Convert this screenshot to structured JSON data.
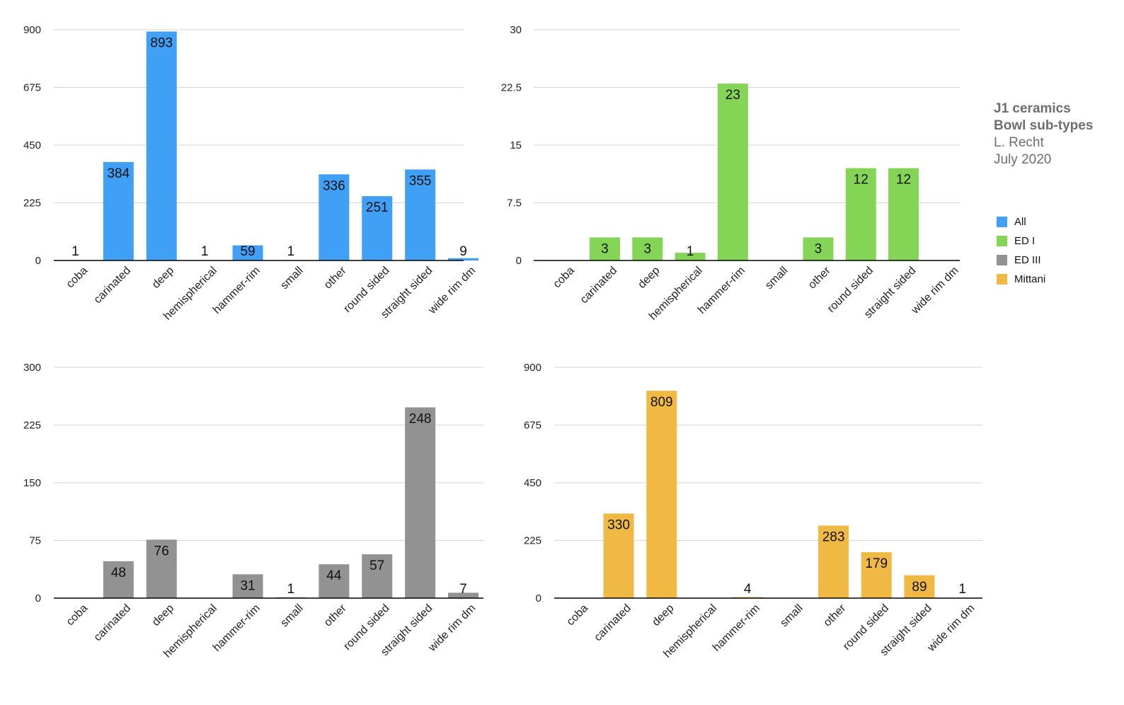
{
  "title": {
    "line1": "J1 ceramics",
    "line2": "Bowl sub-types",
    "line3": "L. Recht",
    "line4": "July 2020"
  },
  "legend": [
    {
      "label": "All",
      "color": "#3fa0f5"
    },
    {
      "label": "ED I",
      "color": "#84d556"
    },
    {
      "label": "ED III",
      "color": "#929292"
    },
    {
      "label": "Mittani",
      "color": "#f0b944"
    }
  ],
  "chart_data": [
    {
      "type": "bar",
      "series_name": "All",
      "color": "#3fa0f5",
      "categories": [
        "coba",
        "carinated",
        "deep",
        "hemispherical",
        "hammer-rim",
        "small",
        "other",
        "round sided",
        "straight sided",
        "wide rim dm"
      ],
      "values": [
        1,
        384,
        893,
        1,
        59,
        1,
        336,
        251,
        355,
        9
      ],
      "ylim": [
        0,
        900
      ],
      "yticks": [
        "0",
        "225",
        "450",
        "675",
        "900"
      ],
      "grid": true
    },
    {
      "type": "bar",
      "series_name": "ED I",
      "color": "#84d556",
      "categories": [
        "coba",
        "carinated",
        "deep",
        "hemispherical",
        "hammer-rim",
        "small",
        "other",
        "round sided",
        "straight sided",
        "wide rim dm"
      ],
      "values": [
        null,
        3,
        3,
        1,
        23,
        null,
        3,
        12,
        12,
        null
      ],
      "ylim": [
        0,
        30
      ],
      "yticks": [
        "0",
        "7.5",
        "15",
        "22.5",
        "30"
      ],
      "grid": true
    },
    {
      "type": "bar",
      "series_name": "ED III",
      "color": "#929292",
      "categories": [
        "coba",
        "carinated",
        "deep",
        "hemispherical",
        "hammer-rim",
        "small",
        "other",
        "round sided",
        "straight sided",
        "wide rim dm"
      ],
      "values": [
        null,
        48,
        76,
        null,
        31,
        1,
        44,
        57,
        248,
        7
      ],
      "ylim": [
        0,
        300
      ],
      "yticks": [
        "0",
        "75",
        "150",
        "225",
        "300"
      ],
      "grid": true
    },
    {
      "type": "bar",
      "series_name": "Mittani",
      "color": "#f0b944",
      "categories": [
        "coba",
        "carinated",
        "deep",
        "hemispherical",
        "hammer-rim",
        "small",
        "other",
        "round sided",
        "straight sided",
        "wide rim dm"
      ],
      "values": [
        null,
        330,
        809,
        null,
        4,
        null,
        283,
        179,
        89,
        1
      ],
      "ylim": [
        0,
        900
      ],
      "yticks": [
        "0",
        "225",
        "450",
        "675",
        "900"
      ],
      "grid": true
    }
  ]
}
